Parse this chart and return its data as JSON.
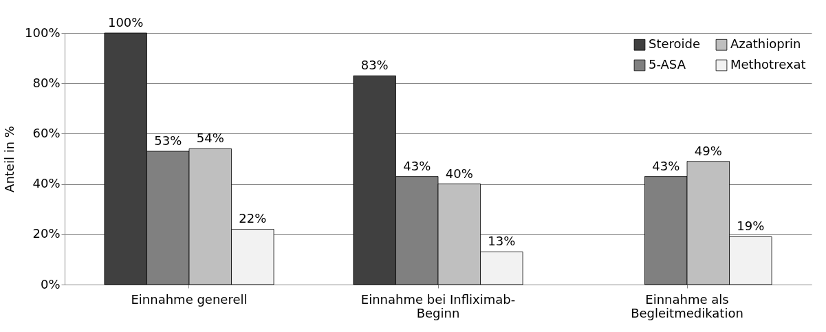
{
  "chart_data": {
    "type": "bar",
    "ylabel": "Anteil in %",
    "categories": [
      "Einnahme generell",
      "Einnahme bei Infliximab-Beginn",
      "Einnahme als Begleitmedikation"
    ],
    "series": [
      {
        "name": "Steroide",
        "color": "#404040",
        "values": [
          100,
          83,
          null
        ],
        "value_labels": [
          "100%",
          "83%",
          null
        ]
      },
      {
        "name": "5-ASA",
        "color": "#808080",
        "values": [
          53,
          43,
          43
        ],
        "value_labels": [
          "53%",
          "43%",
          "43%"
        ]
      },
      {
        "name": "Azathioprin",
        "color": "#bfbfbf",
        "values": [
          54,
          40,
          49
        ],
        "value_labels": [
          "54%",
          "40%",
          "49%"
        ]
      },
      {
        "name": "Methotrexat",
        "color": "#f2f2f2",
        "values": [
          22,
          13,
          19
        ],
        "value_labels": [
          "22%",
          "13%",
          "19%"
        ]
      }
    ],
    "ylim": [
      0,
      100
    ],
    "yticks": [
      {
        "value": 0,
        "label": "0%"
      },
      {
        "value": 20,
        "label": "20%"
      },
      {
        "value": 40,
        "label": "40%"
      },
      {
        "value": 60,
        "label": "60%"
      },
      {
        "value": 80,
        "label": "80%"
      },
      {
        "value": 100,
        "label": "100%"
      }
    ],
    "grid": "y",
    "legend": "top right"
  }
}
